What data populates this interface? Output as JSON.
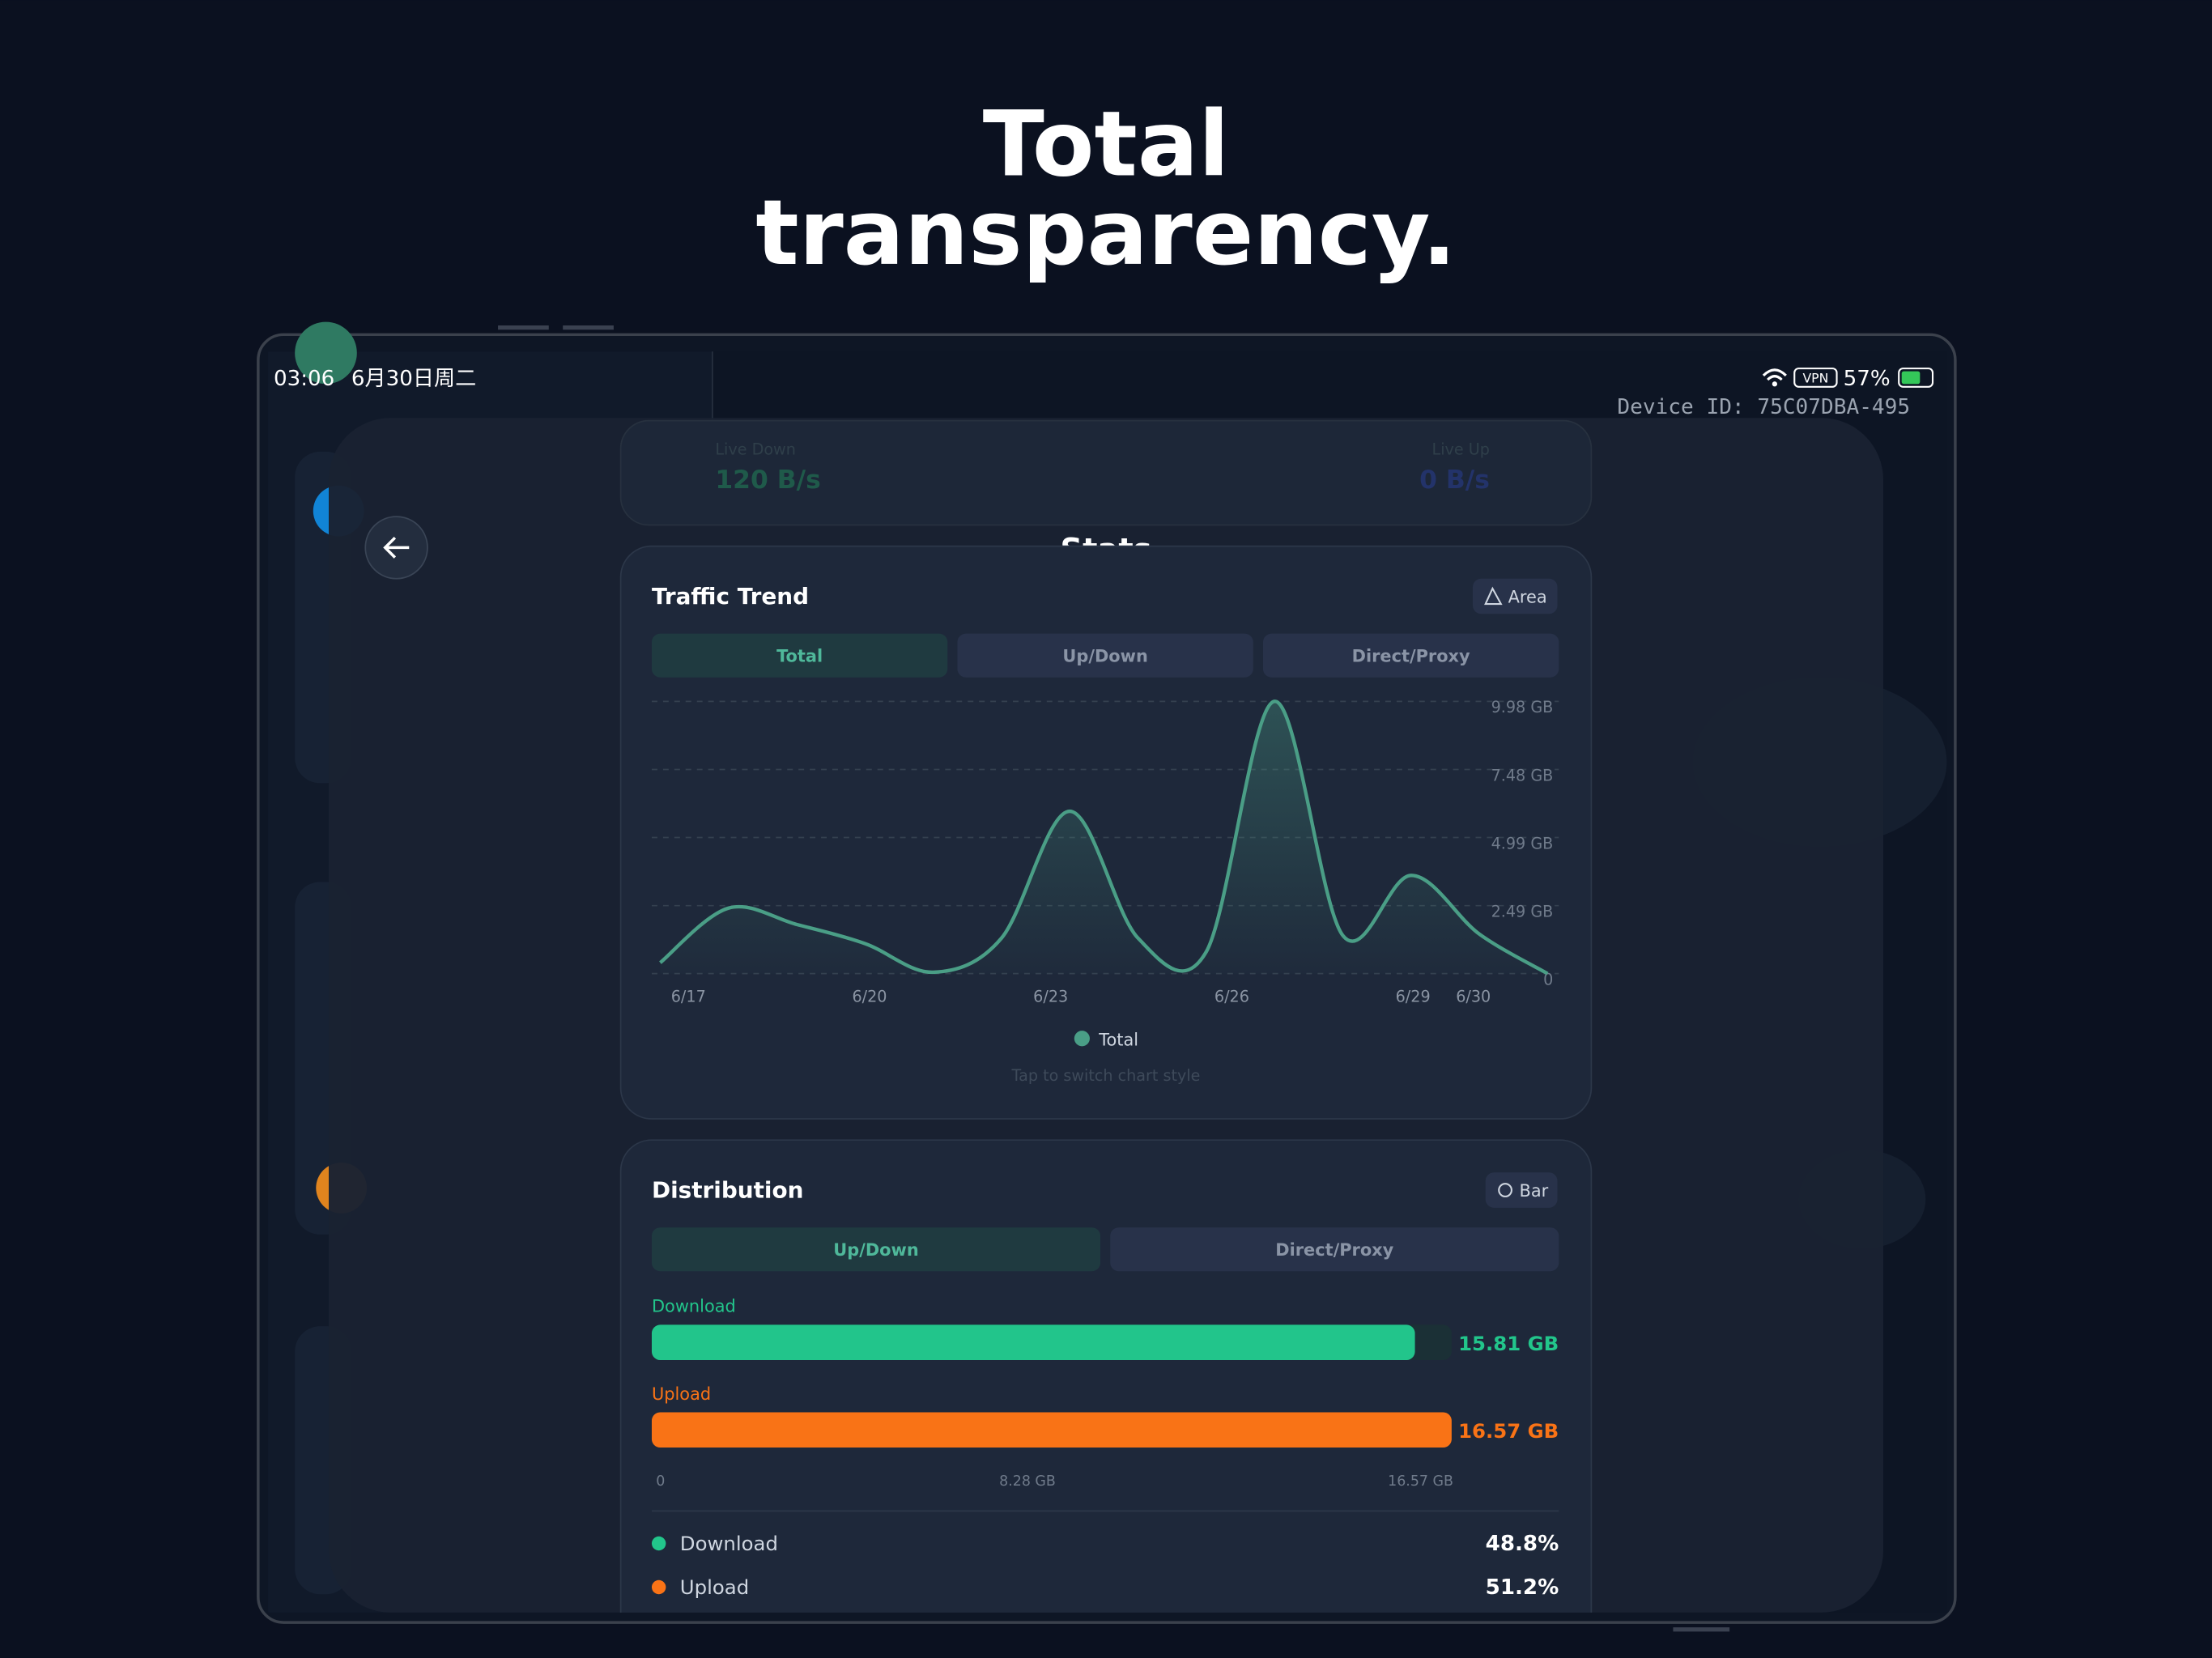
{
  "headline": [
    "Total",
    "transparency."
  ],
  "status_bar": {
    "time": "03:06",
    "date": "6月30日周二",
    "vpn": "VPN",
    "battery": "57%",
    "device_id": "Device ID: 75C07DBA-495"
  },
  "live": {
    "down_label": "Live Down",
    "down_value": "120 B/s",
    "up_label": "Live Up",
    "up_value": "0 B/s"
  },
  "page_title": "Stats",
  "trend_card": {
    "title": "Traffic Trend",
    "style_button": "Area",
    "tabs": [
      "Total",
      "Up/Down",
      "Direct/Proxy"
    ],
    "hint": "Tap to switch chart style"
  },
  "distribution_card": {
    "title": "Distribution",
    "style_button": "Bar",
    "tabs": [
      "Up/Down",
      "Direct/Proxy"
    ],
    "shares": {
      "labels": [
        "Download",
        "Upload"
      ],
      "values": [
        "48.8%",
        "51.2%"
      ]
    }
  },
  "chart_data": [
    {
      "type": "area",
      "categories": [
        "6/17",
        null,
        null,
        "6/20",
        null,
        null,
        "6/23",
        null,
        null,
        "6/26",
        null,
        null,
        "6/29",
        "6/30"
      ],
      "series": [
        {
          "name": "Total",
          "color": "#4a9e86",
          "values": [
            0.4,
            2.4,
            1.8,
            1.1,
            0.05,
            1.3,
            5.95,
            1.3,
            0.8,
            9.98,
            1.4,
            3.6,
            1.45,
            0.0
          ]
        }
      ],
      "ylim": [
        0,
        9.98
      ],
      "yticks": [
        0,
        {
          "value": 2.49,
          "label": "2.49 GB"
        },
        {
          "value": 4.99,
          "label": "4.99 GB"
        },
        {
          "value": 7.48,
          "label": "7.48 GB"
        },
        {
          "value": 9.98,
          "label": "9.98 GB"
        }
      ],
      "grid": true
    },
    {
      "type": "hbar",
      "categories": [
        "Download",
        "Upload"
      ],
      "values": [
        15.81,
        16.57
      ],
      "value_labels": [
        "15.81 GB",
        "16.57 GB"
      ],
      "colors": [
        "#22c58b",
        "#f97316"
      ],
      "xlim": [
        0,
        16.57
      ],
      "xticks": [
        0,
        {
          "value": 8.28,
          "label": "8.28 GB"
        },
        {
          "value": 16.57,
          "label": "16.57 GB"
        }
      ]
    }
  ]
}
